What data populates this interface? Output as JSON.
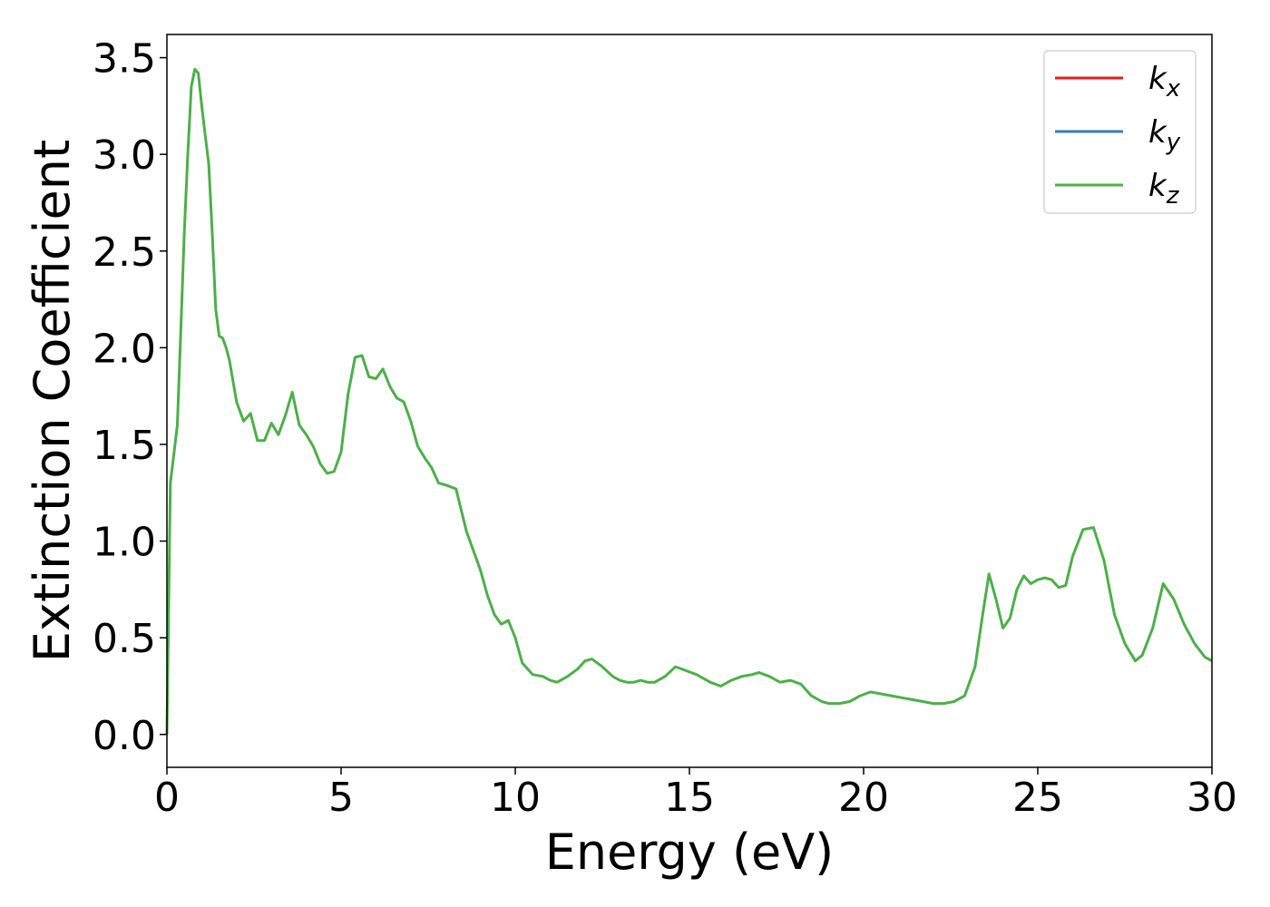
{
  "chart_data": {
    "type": "line",
    "xlabel": "Energy (eV)",
    "ylabel": "Extinction Coefficient",
    "xlim": [
      0,
      30
    ],
    "ylim": [
      -0.17,
      3.62
    ],
    "xticks": [
      0,
      5,
      10,
      15,
      20,
      25,
      30
    ],
    "yticks": [
      0.0,
      0.5,
      1.0,
      1.5,
      2.0,
      2.5,
      3.0,
      3.5
    ],
    "xtick_labels": [
      "0",
      "5",
      "10",
      "15",
      "20",
      "25",
      "30"
    ],
    "ytick_labels": [
      "0.0",
      "0.5",
      "1.0",
      "1.5",
      "2.0",
      "2.5",
      "3.0",
      "3.5"
    ],
    "grid": false,
    "legend_position": "top-right",
    "series": [
      {
        "name": "k",
        "subscript": "x",
        "color": "#e41a1c",
        "x": [
          0,
          0.1,
          0.2,
          0.3,
          0.4,
          0.5,
          0.6,
          0.7,
          0.8,
          0.9,
          1.0,
          1.1,
          1.2,
          1.3,
          1.4,
          1.5,
          1.6,
          1.7,
          1.8,
          2.0,
          2.2,
          2.4,
          2.6,
          2.8,
          3.0,
          3.2,
          3.4,
          3.6,
          3.8,
          4.0,
          4.2,
          4.4,
          4.6,
          4.8,
          5.0,
          5.2,
          5.4,
          5.6,
          5.8,
          6.0,
          6.2,
          6.4,
          6.6,
          6.8,
          7.0,
          7.2,
          7.4,
          7.6,
          7.8,
          8.0,
          8.3,
          8.6,
          9.0,
          9.2,
          9.4,
          9.6,
          9.8,
          10.0,
          10.2,
          10.5,
          10.8,
          11.0,
          11.2,
          11.5,
          11.8,
          12.0,
          12.2,
          12.5,
          12.8,
          13.0,
          13.2,
          13.4,
          13.6,
          13.8,
          14.0,
          14.3,
          14.6,
          14.9,
          15.2,
          15.4,
          15.6,
          15.9,
          16.2,
          16.5,
          16.8,
          17.0,
          17.3,
          17.6,
          17.9,
          18.2,
          18.5,
          18.8,
          19.0,
          19.3,
          19.6,
          19.9,
          20.2,
          20.5,
          20.8,
          21.1,
          21.4,
          21.7,
          22.0,
          22.3,
          22.6,
          22.9,
          23.2,
          23.4,
          23.6,
          23.8,
          24.0,
          24.2,
          24.4,
          24.6,
          24.8,
          25.0,
          25.2,
          25.4,
          25.6,
          25.8,
          26.0,
          26.3,
          26.6,
          26.9,
          27.2,
          27.5,
          27.8,
          28.0,
          28.3,
          28.6,
          28.9,
          29.2,
          29.5,
          29.8,
          30.0
        ],
        "y": [
          0.0,
          1.3,
          1.45,
          1.6,
          2.1,
          2.6,
          3.0,
          3.35,
          3.44,
          3.42,
          3.25,
          3.1,
          2.95,
          2.6,
          2.2,
          2.06,
          2.05,
          2.0,
          1.93,
          1.72,
          1.62,
          1.66,
          1.52,
          1.52,
          1.61,
          1.55,
          1.65,
          1.77,
          1.6,
          1.55,
          1.49,
          1.4,
          1.35,
          1.36,
          1.46,
          1.76,
          1.95,
          1.96,
          1.85,
          1.84,
          1.89,
          1.8,
          1.74,
          1.72,
          1.62,
          1.49,
          1.43,
          1.38,
          1.3,
          1.29,
          1.27,
          1.05,
          0.85,
          0.72,
          0.62,
          0.57,
          0.59,
          0.5,
          0.37,
          0.31,
          0.3,
          0.28,
          0.27,
          0.3,
          0.34,
          0.38,
          0.39,
          0.35,
          0.3,
          0.28,
          0.27,
          0.27,
          0.28,
          0.27,
          0.27,
          0.3,
          0.35,
          0.33,
          0.31,
          0.29,
          0.27,
          0.25,
          0.28,
          0.3,
          0.31,
          0.32,
          0.3,
          0.27,
          0.28,
          0.26,
          0.2,
          0.17,
          0.16,
          0.16,
          0.17,
          0.2,
          0.22,
          0.21,
          0.2,
          0.19,
          0.18,
          0.17,
          0.16,
          0.16,
          0.17,
          0.2,
          0.35,
          0.6,
          0.83,
          0.7,
          0.55,
          0.6,
          0.75,
          0.82,
          0.78,
          0.8,
          0.81,
          0.8,
          0.76,
          0.77,
          0.92,
          1.06,
          1.07,
          0.9,
          0.62,
          0.47,
          0.38,
          0.41,
          0.55,
          0.78,
          0.7,
          0.57,
          0.47,
          0.4,
          0.38
        ],
        "visible": false
      },
      {
        "name": "k",
        "subscript": "y",
        "color": "#377eb8",
        "x": [
          0,
          0.1,
          0.2,
          0.3,
          0.4,
          0.5,
          0.6,
          0.7,
          0.8,
          0.9,
          1.0,
          1.1,
          1.2,
          1.3,
          1.4,
          1.5,
          1.6,
          1.7,
          1.8,
          2.0,
          2.2,
          2.4,
          2.6,
          2.8,
          3.0,
          3.2,
          3.4,
          3.6,
          3.8,
          4.0,
          4.2,
          4.4,
          4.6,
          4.8,
          5.0,
          5.2,
          5.4,
          5.6,
          5.8,
          6.0,
          6.2,
          6.4,
          6.6,
          6.8,
          7.0,
          7.2,
          7.4,
          7.6,
          7.8,
          8.0,
          8.3,
          8.6,
          9.0,
          9.2,
          9.4,
          9.6,
          9.8,
          10.0,
          10.2,
          10.5,
          10.8,
          11.0,
          11.2,
          11.5,
          11.8,
          12.0,
          12.2,
          12.5,
          12.8,
          13.0,
          13.2,
          13.4,
          13.6,
          13.8,
          14.0,
          14.3,
          14.6,
          14.9,
          15.2,
          15.4,
          15.6,
          15.9,
          16.2,
          16.5,
          16.8,
          17.0,
          17.3,
          17.6,
          17.9,
          18.2,
          18.5,
          18.8,
          19.0,
          19.3,
          19.6,
          19.9,
          20.2,
          20.5,
          20.8,
          21.1,
          21.4,
          21.7,
          22.0,
          22.3,
          22.6,
          22.9,
          23.2,
          23.4,
          23.6,
          23.8,
          24.0,
          24.2,
          24.4,
          24.6,
          24.8,
          25.0,
          25.2,
          25.4,
          25.6,
          25.8,
          26.0,
          26.3,
          26.6,
          26.9,
          27.2,
          27.5,
          27.8,
          28.0,
          28.3,
          28.6,
          28.9,
          29.2,
          29.5,
          29.8,
          30.0
        ],
        "y": [
          0.0,
          1.3,
          1.45,
          1.6,
          2.1,
          2.6,
          3.0,
          3.35,
          3.44,
          3.42,
          3.25,
          3.1,
          2.95,
          2.6,
          2.2,
          2.06,
          2.05,
          2.0,
          1.93,
          1.72,
          1.62,
          1.66,
          1.52,
          1.52,
          1.61,
          1.55,
          1.65,
          1.77,
          1.6,
          1.55,
          1.49,
          1.4,
          1.35,
          1.36,
          1.46,
          1.76,
          1.95,
          1.96,
          1.85,
          1.84,
          1.89,
          1.8,
          1.74,
          1.72,
          1.62,
          1.49,
          1.43,
          1.38,
          1.3,
          1.29,
          1.27,
          1.05,
          0.85,
          0.72,
          0.62,
          0.57,
          0.59,
          0.5,
          0.37,
          0.31,
          0.3,
          0.28,
          0.27,
          0.3,
          0.34,
          0.38,
          0.39,
          0.35,
          0.3,
          0.28,
          0.27,
          0.27,
          0.28,
          0.27,
          0.27,
          0.3,
          0.35,
          0.33,
          0.31,
          0.29,
          0.27,
          0.25,
          0.28,
          0.3,
          0.31,
          0.32,
          0.3,
          0.27,
          0.28,
          0.26,
          0.2,
          0.17,
          0.16,
          0.16,
          0.17,
          0.2,
          0.22,
          0.21,
          0.2,
          0.19,
          0.18,
          0.17,
          0.16,
          0.16,
          0.17,
          0.2,
          0.35,
          0.6,
          0.83,
          0.7,
          0.55,
          0.6,
          0.75,
          0.82,
          0.78,
          0.8,
          0.81,
          0.8,
          0.76,
          0.77,
          0.92,
          1.06,
          1.07,
          0.9,
          0.62,
          0.47,
          0.38,
          0.41,
          0.55,
          0.78,
          0.7,
          0.57,
          0.47,
          0.4,
          0.38
        ],
        "visible": false
      },
      {
        "name": "k",
        "subscript": "z",
        "color": "#4daf4a",
        "x": [
          0,
          0.1,
          0.2,
          0.3,
          0.4,
          0.5,
          0.6,
          0.7,
          0.8,
          0.9,
          1.0,
          1.1,
          1.2,
          1.3,
          1.4,
          1.5,
          1.6,
          1.7,
          1.8,
          2.0,
          2.2,
          2.4,
          2.6,
          2.8,
          3.0,
          3.2,
          3.4,
          3.6,
          3.8,
          4.0,
          4.2,
          4.4,
          4.6,
          4.8,
          5.0,
          5.2,
          5.4,
          5.6,
          5.8,
          6.0,
          6.2,
          6.4,
          6.6,
          6.8,
          7.0,
          7.2,
          7.4,
          7.6,
          7.8,
          8.0,
          8.3,
          8.6,
          9.0,
          9.2,
          9.4,
          9.6,
          9.8,
          10.0,
          10.2,
          10.5,
          10.8,
          11.0,
          11.2,
          11.5,
          11.8,
          12.0,
          12.2,
          12.5,
          12.8,
          13.0,
          13.2,
          13.4,
          13.6,
          13.8,
          14.0,
          14.3,
          14.6,
          14.9,
          15.2,
          15.4,
          15.6,
          15.9,
          16.2,
          16.5,
          16.8,
          17.0,
          17.3,
          17.6,
          17.9,
          18.2,
          18.5,
          18.8,
          19.0,
          19.3,
          19.6,
          19.9,
          20.2,
          20.5,
          20.8,
          21.1,
          21.4,
          21.7,
          22.0,
          22.3,
          22.6,
          22.9,
          23.2,
          23.4,
          23.6,
          23.8,
          24.0,
          24.2,
          24.4,
          24.6,
          24.8,
          25.0,
          25.2,
          25.4,
          25.6,
          25.8,
          26.0,
          26.3,
          26.6,
          26.9,
          27.2,
          27.5,
          27.8,
          28.0,
          28.3,
          28.6,
          28.9,
          29.2,
          29.5,
          29.8,
          30.0
        ],
        "y": [
          0.0,
          1.3,
          1.45,
          1.6,
          2.1,
          2.6,
          3.0,
          3.35,
          3.44,
          3.42,
          3.25,
          3.1,
          2.95,
          2.6,
          2.2,
          2.06,
          2.05,
          2.0,
          1.93,
          1.72,
          1.62,
          1.66,
          1.52,
          1.52,
          1.61,
          1.55,
          1.65,
          1.77,
          1.6,
          1.55,
          1.49,
          1.4,
          1.35,
          1.36,
          1.46,
          1.76,
          1.95,
          1.96,
          1.85,
          1.84,
          1.89,
          1.8,
          1.74,
          1.72,
          1.62,
          1.49,
          1.43,
          1.38,
          1.3,
          1.29,
          1.27,
          1.05,
          0.85,
          0.72,
          0.62,
          0.57,
          0.59,
          0.5,
          0.37,
          0.31,
          0.3,
          0.28,
          0.27,
          0.3,
          0.34,
          0.38,
          0.39,
          0.35,
          0.3,
          0.28,
          0.27,
          0.27,
          0.28,
          0.27,
          0.27,
          0.3,
          0.35,
          0.33,
          0.31,
          0.29,
          0.27,
          0.25,
          0.28,
          0.3,
          0.31,
          0.32,
          0.3,
          0.27,
          0.28,
          0.26,
          0.2,
          0.17,
          0.16,
          0.16,
          0.17,
          0.2,
          0.22,
          0.21,
          0.2,
          0.19,
          0.18,
          0.17,
          0.16,
          0.16,
          0.17,
          0.2,
          0.35,
          0.6,
          0.83,
          0.7,
          0.55,
          0.6,
          0.75,
          0.82,
          0.78,
          0.8,
          0.81,
          0.8,
          0.76,
          0.77,
          0.92,
          1.06,
          1.07,
          0.9,
          0.62,
          0.47,
          0.38,
          0.41,
          0.55,
          0.78,
          0.7,
          0.57,
          0.47,
          0.4,
          0.38
        ],
        "visible": true
      }
    ]
  }
}
